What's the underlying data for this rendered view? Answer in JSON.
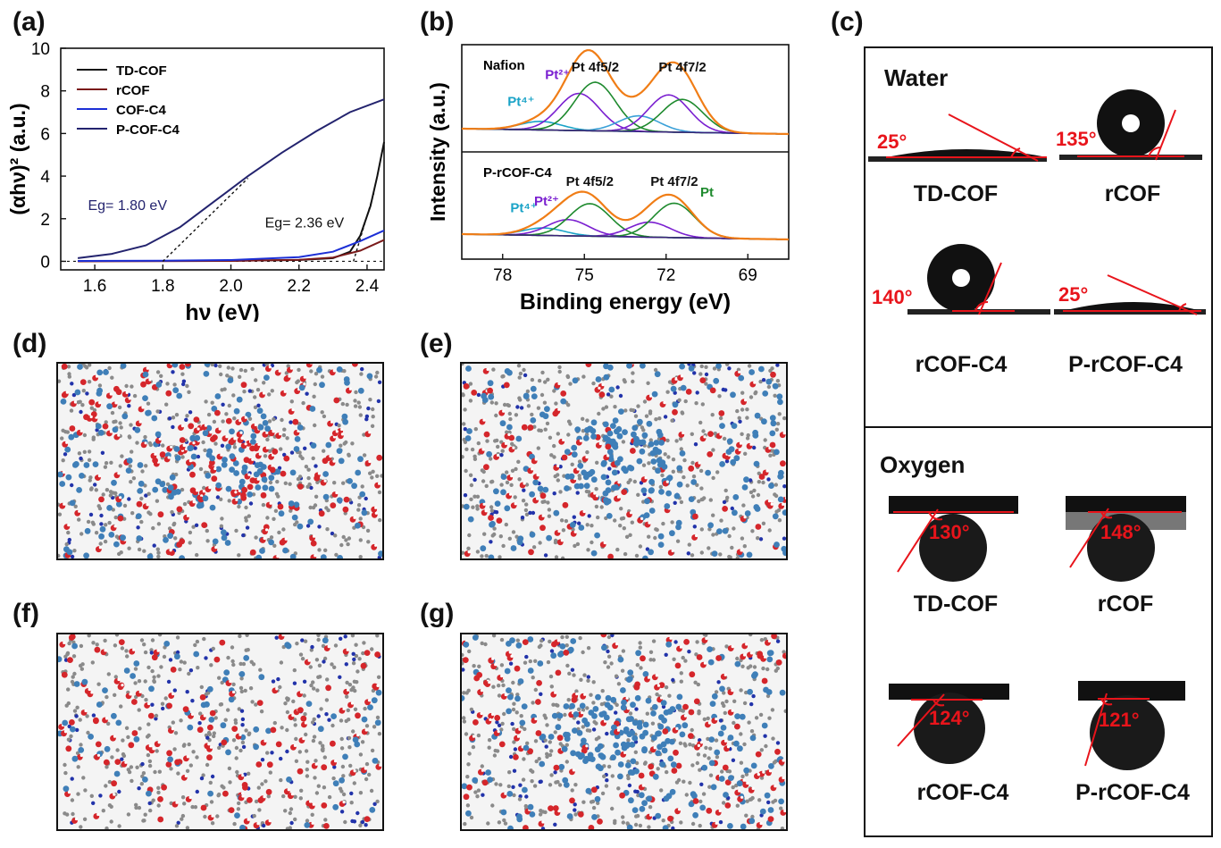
{
  "panel_labels": {
    "a": "(a)",
    "b": "(b)",
    "c": "(c)",
    "d": "(d)",
    "e": "(e)",
    "f": "(f)",
    "g": "(g)"
  },
  "chart_data": [
    {
      "type": "line",
      "panel": "(a)",
      "xlabel": "hν (eV)",
      "ylabel": "(αhν)² (a.u.)",
      "xlim": [
        1.5,
        2.45
      ],
      "ylim": [
        -0.4,
        10
      ],
      "xticks": [
        "1.6",
        "1.8",
        "2.0",
        "2.2",
        "2.4"
      ],
      "yticks": [
        "0",
        "2",
        "4",
        "6",
        "8",
        "10"
      ],
      "legend_position": "top-left",
      "series": [
        {
          "name": "TD-COF",
          "color": "#111111",
          "x": [
            1.55,
            1.8,
            2.0,
            2.2,
            2.3,
            2.35,
            2.38,
            2.41,
            2.43,
            2.45
          ],
          "y": [
            0.02,
            0.02,
            0.03,
            0.06,
            0.15,
            0.45,
            1.2,
            2.6,
            4.0,
            5.6
          ]
        },
        {
          "name": "rCOF",
          "color": "#7a1a1a",
          "x": [
            1.55,
            1.8,
            2.0,
            2.2,
            2.3,
            2.38,
            2.45
          ],
          "y": [
            0.0,
            0.01,
            0.02,
            0.07,
            0.18,
            0.5,
            1.0
          ]
        },
        {
          "name": "COF-C4",
          "color": "#1c2fd6",
          "x": [
            1.55,
            1.8,
            2.0,
            2.2,
            2.3,
            2.38,
            2.45
          ],
          "y": [
            0.02,
            0.03,
            0.06,
            0.2,
            0.45,
            0.95,
            1.45
          ]
        },
        {
          "name": "P-COF-C4",
          "color": "#23236e",
          "x": [
            1.55,
            1.65,
            1.75,
            1.85,
            1.95,
            2.05,
            2.15,
            2.25,
            2.35,
            2.45
          ],
          "y": [
            0.15,
            0.35,
            0.75,
            1.6,
            2.8,
            4.0,
            5.1,
            6.1,
            7.0,
            7.6
          ]
        }
      ],
      "annotations": [
        {
          "text": "Eg= 1.80 eV",
          "x": 1.8,
          "color": "#23236e"
        },
        {
          "text": "Eg= 2.36 eV",
          "x": 2.36,
          "color": "#111111"
        }
      ]
    },
    {
      "type": "line",
      "panel": "(b)",
      "xlabel": "Binding energy (eV)",
      "ylabel": "Intensity (a.u.)",
      "xlim": [
        79.5,
        67.5
      ],
      "x_reversed": true,
      "xticks": [
        "78",
        "75",
        "72",
        "69"
      ],
      "subpanels": [
        {
          "name": "Nafion",
          "peaks": [
            {
              "label": "Pt⁴⁺",
              "center": 76.6,
              "color": "#1aa3c7",
              "height": 0.12
            },
            {
              "label": "Pt²⁺",
              "center": 75.2,
              "color": "#7a1fd0",
              "height": 0.52
            },
            {
              "label": "Pt 4f5/2",
              "center": 74.6,
              "color": "#1e8a2e",
              "height": 0.68
            },
            {
              "label": "",
              "center": 73.0,
              "color": "#3aa0d8",
              "height": 0.22
            },
            {
              "label": "",
              "center": 71.9,
              "color": "#7a1fd0",
              "height": 0.52
            },
            {
              "label": "Pt 4f7/2",
              "center": 71.4,
              "color": "#1e8a2e",
              "height": 0.46
            }
          ],
          "envelope_peak_heights": {
            "Pt 4f5/2": 0.92,
            "Pt 4f7/2": 0.82
          }
        },
        {
          "name": "P-rCOF-C4",
          "peaks": [
            {
              "label": "Pt⁴⁺",
              "center": 76.5,
              "color": "#1aa3c7",
              "height": 0.12
            },
            {
              "label": "Pt²⁺",
              "center": 75.6,
              "color": "#7a1fd0",
              "height": 0.26
            },
            {
              "label": "Pt 4f5/2",
              "center": 74.8,
              "color": "#1e8a2e",
              "height": 0.52
            },
            {
              "label": "",
              "center": 72.6,
              "color": "#7a1fd0",
              "height": 0.24
            },
            {
              "label": "Pt 4f7/2",
              "center": 71.7,
              "color": "#1e8a2e",
              "height": 0.55
            },
            {
              "label": "Pt",
              "center": 70.9,
              "color": "#1e8a2e",
              "height": 0.0
            }
          ]
        }
      ]
    }
  ],
  "panel_c": {
    "water_title": "Water",
    "oxygen_title": "Oxygen",
    "water": [
      {
        "name": "TD-COF",
        "angle": "25°"
      },
      {
        "name": "rCOF",
        "angle": "135°"
      },
      {
        "name": "rCOF-C4",
        "angle": "140°"
      },
      {
        "name": "P-rCOF-C4",
        "angle": "25°"
      }
    ],
    "oxygen": [
      {
        "name": "TD-COF",
        "angle": "130°"
      },
      {
        "name": "rCOF",
        "angle": "148°"
      },
      {
        "name": "rCOF-C4",
        "angle": "124°"
      },
      {
        "name": "P-rCOF-C4",
        "angle": "121°"
      }
    ]
  },
  "colors": {
    "blue_molecules": "#3f7fb8",
    "red_molecules": "#d5262b",
    "framework": "#8a8a8a",
    "angle_red": "#e8141b"
  }
}
